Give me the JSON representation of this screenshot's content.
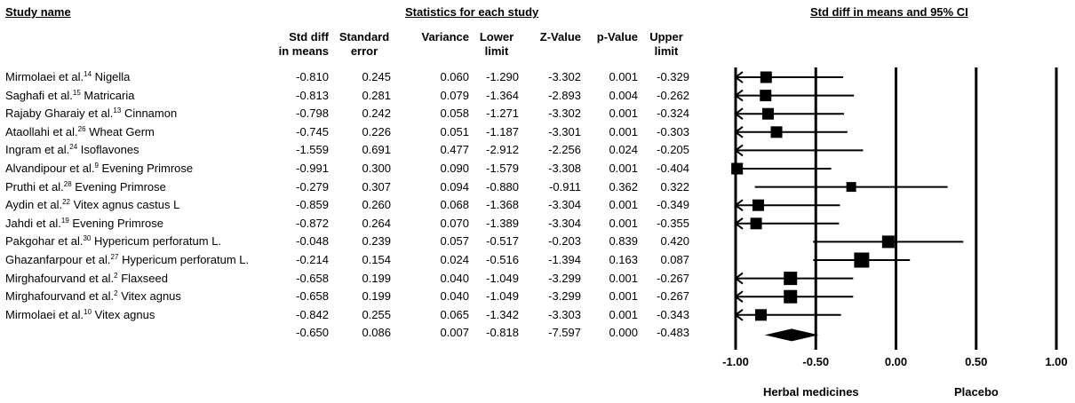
{
  "headers": {
    "study_name": "Study name",
    "statistics": "Statistics for each study",
    "plot": "Std diff in means and 95% CI"
  },
  "columns": [
    {
      "line1": "Std diff",
      "line2": "in means"
    },
    {
      "line1": "Standard",
      "line2": "error"
    },
    {
      "line1": "",
      "line2": "Variance"
    },
    {
      "line1": "Lower",
      "line2": "limit"
    },
    {
      "line1": "",
      "line2": "Z-Value"
    },
    {
      "line1": "",
      "line2": "p-Value"
    },
    {
      "line1": "Upper",
      "line2": "limit"
    }
  ],
  "studies": [
    {
      "author": "Mirmolaei et al.",
      "ref": "14",
      "herb": "Nigella",
      "values": [
        "-0.810",
        "0.245",
        "0.060",
        "-1.290",
        "-3.302",
        "0.001",
        "-0.329"
      ]
    },
    {
      "author": "Saghafi et al.",
      "ref": "15",
      "herb": "Matricaria",
      "values": [
        "-0.813",
        "0.281",
        "0.079",
        "-1.364",
        "-2.893",
        "0.004",
        "-0.262"
      ]
    },
    {
      "author": "Rajaby Gharaiy et al.",
      "ref": "13",
      "herb": "Cinnamon",
      "values": [
        "-0.798",
        "0.242",
        "0.058",
        "-1.271",
        "-3.302",
        "0.001",
        "-0.324"
      ]
    },
    {
      "author": "Ataollahi et al.",
      "ref": "26",
      "herb": "Wheat Germ",
      "values": [
        "-0.745",
        "0.226",
        "0.051",
        "-1.187",
        "-3.301",
        "0.001",
        "-0.303"
      ]
    },
    {
      "author": "Ingram et al.",
      "ref": "24",
      "herb": "Isoflavones",
      "values": [
        "-1.559",
        "0.691",
        "0.477",
        "-2.912",
        "-2.256",
        "0.024",
        "-0.205"
      ]
    },
    {
      "author": "Alvandipour et al.",
      "ref": "9",
      "herb": "Evening Primrose",
      "values": [
        "-0.991",
        "0.300",
        "0.090",
        "-1.579",
        "-3.308",
        "0.001",
        "-0.404"
      ]
    },
    {
      "author": "Pruthi et al.",
      "ref": "28",
      "herb": "Evening Primrose",
      "values": [
        "-0.279",
        "0.307",
        "0.094",
        "-0.880",
        "-0.911",
        "0.362",
        "0.322"
      ]
    },
    {
      "author": "Aydin et al.",
      "ref": "22",
      "herb": "Vitex agnus castus L",
      "values": [
        "-0.859",
        "0.260",
        "0.068",
        "-1.368",
        "-3.304",
        "0.001",
        "-0.349"
      ]
    },
    {
      "author": "Jahdi et al.",
      "ref": "19",
      "herb": "Evening Primrose",
      "values": [
        "-0.872",
        "0.264",
        "0.070",
        "-1.389",
        "-3.304",
        "0.001",
        "-0.355"
      ]
    },
    {
      "author": "Pakgohar et al.",
      "ref": "30",
      "herb": "Hypericum perforatum L.",
      "values": [
        "-0.048",
        "0.239",
        "0.057",
        "-0.517",
        "-0.203",
        "0.839",
        "0.420"
      ]
    },
    {
      "author": "Ghazanfarpour et al.",
      "ref": "27",
      "herb": "Hypericum perforatum L.",
      "values": [
        "-0.214",
        "0.154",
        "0.024",
        "-0.516",
        "-1.394",
        "0.163",
        "0.087"
      ]
    },
    {
      "author": "Mirghafourvand et al.",
      "ref": "2",
      "herb": "Flaxseed",
      "values": [
        "-0.658",
        "0.199",
        "0.040",
        "-1.049",
        "-3.299",
        "0.001",
        "-0.267"
      ]
    },
    {
      "author": "Mirghafourvand et al.",
      "ref": "2",
      "herb": "Vitex agnus",
      "values": [
        "-0.658",
        "0.199",
        "0.040",
        "-1.049",
        "-3.299",
        "0.001",
        "-0.267"
      ]
    },
    {
      "author": "Mirmolaei et al.",
      "ref": "10",
      "herb": "Vitex agnus",
      "values": [
        "-0.842",
        "0.255",
        "0.065",
        "-1.342",
        "-3.303",
        "0.001",
        "-0.343"
      ]
    }
  ],
  "summary": {
    "values": [
      "-0.650",
      "0.086",
      "0.007",
      "-0.818",
      "-7.597",
      "0.000",
      "-0.483"
    ]
  },
  "footer": {
    "left_label": "Herbal medicines",
    "right_label": "Placebo"
  },
  "chart_data": {
    "type": "forest",
    "xlabel": "",
    "ylabel": "",
    "xlim": [
      -1.0,
      1.0
    ],
    "ticks": [
      "-1.00",
      "-0.50",
      "0.00",
      "0.50",
      "1.00"
    ],
    "tick_values": [
      -1.0,
      -0.5,
      0.0,
      0.5,
      1.0
    ],
    "studies": [
      {
        "label": "Mirmolaei et al. Nigella",
        "effect": -0.81,
        "lower": -1.29,
        "upper": -0.329,
        "weight": 0.06
      },
      {
        "label": "Saghafi et al. Matricaria",
        "effect": -0.813,
        "lower": -1.364,
        "upper": -0.262,
        "weight": 0.079
      },
      {
        "label": "Rajaby Gharaiy et al. Cinnamon",
        "effect": -0.798,
        "lower": -1.271,
        "upper": -0.324,
        "weight": 0.058
      },
      {
        "label": "Ataollahi et al. Wheat Germ",
        "effect": -0.745,
        "lower": -1.187,
        "upper": -0.303,
        "weight": 0.051
      },
      {
        "label": "Ingram et al. Isoflavones",
        "effect": -1.559,
        "lower": -2.912,
        "upper": -0.205,
        "weight": 0.477
      },
      {
        "label": "Alvandipour et al. Evening Primrose",
        "effect": -0.991,
        "lower": -1.579,
        "upper": -0.404,
        "weight": 0.09
      },
      {
        "label": "Pruthi et al. Evening Primrose",
        "effect": -0.279,
        "lower": -0.88,
        "upper": 0.322,
        "weight": 0.094
      },
      {
        "label": "Aydin et al. Vitex agnus castus L",
        "effect": -0.859,
        "lower": -1.368,
        "upper": -0.349,
        "weight": 0.068
      },
      {
        "label": "Jahdi et al. Evening Primrose",
        "effect": -0.872,
        "lower": -1.389,
        "upper": -0.355,
        "weight": 0.07
      },
      {
        "label": "Pakgohar et al. Hypericum perforatum L.",
        "effect": -0.048,
        "lower": -0.517,
        "upper": 0.42,
        "weight": 0.057
      },
      {
        "label": "Ghazanfarpour et al. Hypericum perforatum L.",
        "effect": -0.214,
        "lower": -0.516,
        "upper": 0.087,
        "weight": 0.024
      },
      {
        "label": "Mirghafourvand et al. Flaxseed",
        "effect": -0.658,
        "lower": -1.049,
        "upper": -0.267,
        "weight": 0.04
      },
      {
        "label": "Mirghafourvand et al. Vitex agnus",
        "effect": -0.658,
        "lower": -1.049,
        "upper": -0.267,
        "weight": 0.04
      },
      {
        "label": "Mirmolaei et al. Vitex agnus",
        "effect": -0.842,
        "lower": -1.342,
        "upper": -0.343,
        "weight": 0.065
      }
    ],
    "summary": {
      "effect": -0.65,
      "lower": -0.818,
      "upper": -0.483
    },
    "marker_sizes": [
      13,
      13,
      13,
      13,
      0,
      13,
      11,
      13,
      13,
      14,
      17,
      15,
      15,
      13
    ]
  }
}
